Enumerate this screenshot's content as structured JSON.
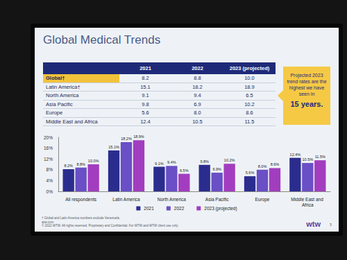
{
  "title": "Global Medical Trends",
  "table": {
    "columns": [
      "2021",
      "2022",
      "2023 (projected)"
    ],
    "rows": [
      {
        "label": "Global†",
        "values": [
          "8.2",
          "8.8",
          "10.0"
        ],
        "highlight": true
      },
      {
        "label": "Latin America†",
        "values": [
          "15.1",
          "18.2",
          "18.9"
        ]
      },
      {
        "label": "North America",
        "values": [
          "9.1",
          "9.4",
          "6.5"
        ]
      },
      {
        "label": "Asia Pacific",
        "values": [
          "9.8",
          "6.9",
          "10.2"
        ]
      },
      {
        "label": "Europe",
        "values": [
          "5.6",
          "8.0",
          "8.6"
        ]
      },
      {
        "label": "Middle East and Africa",
        "values": [
          "12.4",
          "10.5",
          "11.5"
        ]
      }
    ]
  },
  "callout": {
    "text": "Projected 2023 trend rates are the highest we have seen in",
    "emphasis": "15 years."
  },
  "footnotes": [
    "† Global and Latin America numbers exclude Venezuela",
    "wtw.com",
    "© 2022 WTW. All rights reserved. Proprietary and Confidential. For WTW and WTW client use only."
  ],
  "logo": "wtw",
  "page_number": "5",
  "chart_data": {
    "type": "bar",
    "categories": [
      "All respondents",
      "Latin America",
      "North America",
      "Asia Pacific",
      "Europe",
      "Middle East and Africa"
    ],
    "series": [
      {
        "name": "2021",
        "color": "#2b2d8e",
        "values": [
          8.2,
          15.1,
          9.1,
          9.8,
          5.6,
          12.4
        ],
        "value_labels": [
          "8.2%",
          "15.1%",
          "9.1%",
          "9.8%",
          "5.6%",
          "12.4%"
        ]
      },
      {
        "name": "2022",
        "color": "#6a4fc6",
        "values": [
          8.8,
          18.2,
          9.4,
          6.9,
          8.0,
          10.5
        ],
        "value_labels": [
          "8.8%",
          "18.2%",
          "9.4%",
          "6.9%",
          "8.0%",
          "10.5%"
        ]
      },
      {
        "name": "2023 (projected)",
        "color": "#a23dbf",
        "values": [
          10.0,
          18.9,
          6.5,
          10.2,
          8.6,
          11.5
        ],
        "value_labels": [
          "10.0%",
          "18.9%",
          "6.5%",
          "10.2%",
          "8.6%",
          "11.5%"
        ]
      }
    ],
    "ylim": [
      0,
      20
    ],
    "yticks": [
      {
        "value": 0,
        "label": "0%"
      },
      {
        "value": 4,
        "label": "4%"
      },
      {
        "value": 8,
        "label": "8%"
      },
      {
        "value": 12,
        "label": "12%"
      },
      {
        "value": 16,
        "label": "16%"
      },
      {
        "value": 20,
        "label": "20%"
      }
    ],
    "data_labels": true,
    "legend": "bottom",
    "grid": false
  }
}
